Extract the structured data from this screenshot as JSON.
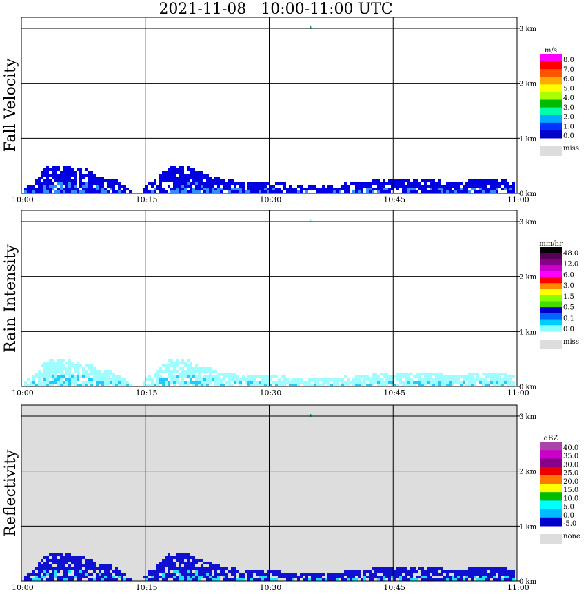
{
  "title": "2021-11-08   10:00-11:00 UTC",
  "chart_data": [
    {
      "type": "heatmap",
      "ylabel": "Fall Velocity",
      "x_ticks": [
        "10:00",
        "10:15",
        "10:30",
        "10:45",
        "11:00"
      ],
      "y_ticks": [
        "0 km",
        "1 km",
        "2 km",
        "3 km"
      ],
      "background": "#ffffff",
      "colorbar": {
        "unit": "m/s",
        "labels": [
          "8.0",
          "7.0",
          "6.0",
          "5.0",
          "4.0",
          "3.0",
          "2.0",
          "1.0",
          "0.0",
          "miss"
        ],
        "colors": [
          "#ff00ff",
          "#ff0000",
          "#ff5500",
          "#ffaa00",
          "#ffff00",
          "#aaff00",
          "#00bb00",
          "#00ffaa",
          "#00aaff",
          "#0033ff",
          "#0000cc"
        ],
        "miss_color": "#dddddd"
      },
      "dominant_color": "#0000e0",
      "accent_color": "#3090ff"
    },
    {
      "type": "heatmap",
      "ylabel": "Rain Intensity",
      "x_ticks": [
        "10:00",
        "10:15",
        "10:30",
        "10:45",
        "11:00"
      ],
      "y_ticks": [
        "0 km",
        "1 km",
        "2 km",
        "3 km"
      ],
      "background": "#ffffff",
      "colorbar": {
        "unit": "mm/hr",
        "labels": [
          "48.0",
          "12.0",
          "6.0",
          "3.0",
          "1.5",
          "0.5",
          "0.1",
          "0.0",
          "miss"
        ],
        "colors": [
          "#000000",
          "#550055",
          "#880088",
          "#cc00cc",
          "#ff00ff",
          "#ff0000",
          "#ff8800",
          "#ffff00",
          "#88ff00",
          "#44dd00",
          "#0000cc",
          "#0066ff",
          "#00ccff",
          "#88ffff"
        ],
        "miss_color": "#dddddd"
      },
      "dominant_color": "#9ffcff",
      "accent_color": "#20ccff"
    },
    {
      "type": "heatmap",
      "ylabel": "Reflectivity",
      "x_ticks": [
        "10:00",
        "10:15",
        "10:30",
        "10:45",
        "11:00"
      ],
      "y_ticks": [
        "0 km",
        "1 km",
        "2 km",
        "3 km"
      ],
      "background": "#dddddd",
      "colorbar": {
        "unit": "dBZ",
        "labels": [
          "40.0",
          "35.0",
          "30.0",
          "25.0",
          "20.0",
          "15.0",
          "10.0",
          "5.0",
          "0.0",
          "-5.0",
          "none"
        ],
        "colors": [
          "#aa44aa",
          "#cc00cc",
          "#880088",
          "#ee0000",
          "#ff7700",
          "#ffff00",
          "#00bb00",
          "#00ffff",
          "#00bbff",
          "#0000cc"
        ],
        "miss_color": "#dddddd"
      },
      "dominant_color": "#1010d0",
      "accent_color": "#20e0ff"
    }
  ],
  "echo_profile": {
    "x_hours": [
      0.0,
      0.02,
      0.05,
      0.08,
      0.1,
      0.12,
      0.15,
      0.18,
      0.2,
      0.22,
      0.24,
      0.245,
      0.27,
      0.3,
      0.32,
      0.35,
      0.38,
      0.4,
      0.43,
      0.47,
      0.5,
      0.53,
      0.57,
      0.6,
      0.65,
      0.7,
      0.75,
      0.8,
      0.85,
      0.9,
      0.95,
      1.0
    ],
    "top_km": [
      0.1,
      0.2,
      0.55,
      0.55,
      0.5,
      0.5,
      0.35,
      0.3,
      0.2,
      0.05,
      0.0,
      0.15,
      0.3,
      0.55,
      0.55,
      0.45,
      0.35,
      0.3,
      0.25,
      0.25,
      0.25,
      0.2,
      0.2,
      0.2,
      0.2,
      0.25,
      0.3,
      0.3,
      0.25,
      0.25,
      0.3,
      0.2
    ]
  }
}
